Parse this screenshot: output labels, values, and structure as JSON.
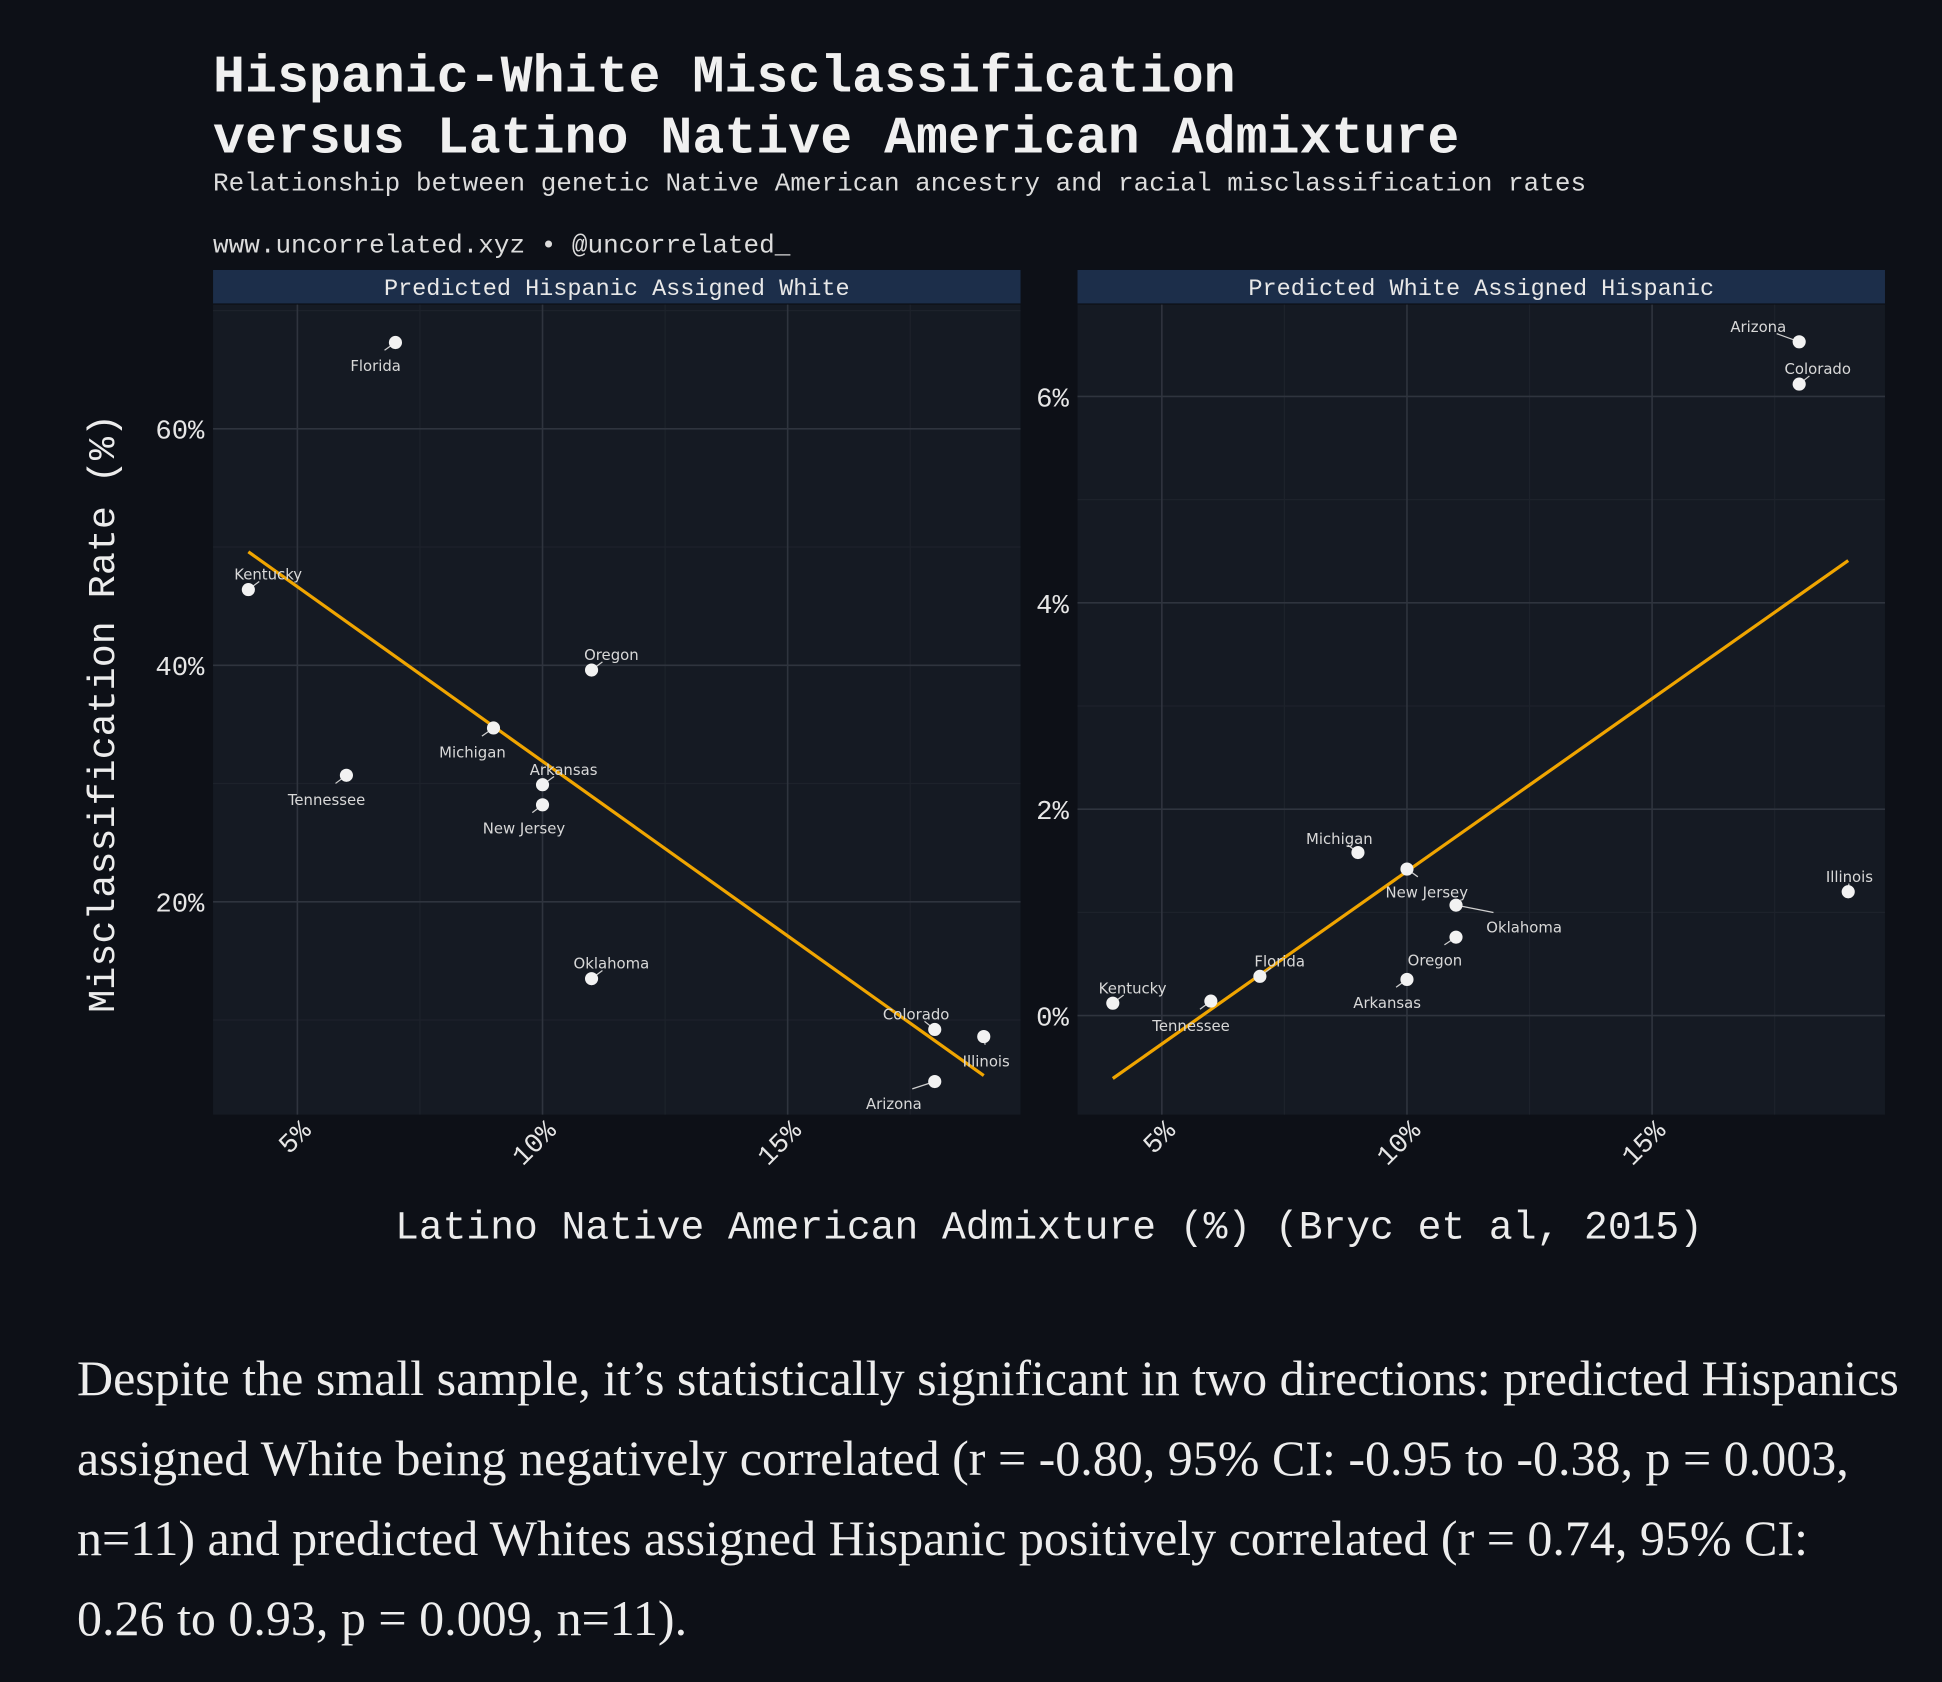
{
  "header": {
    "title_line1": "Hispanic-White Misclassification",
    "title_line2": "versus Latino Native American Admixture",
    "subtitle": "Relationship between genetic Native American ancestry and racial misclassification rates",
    "credit": "www.uncorrelated.xyz • @uncorrelated_"
  },
  "colors": {
    "background": "#0d1017",
    "panel": "#151a23",
    "strip": "#1c2e4a",
    "grid_major": "#2f343e",
    "grid_minor": "#1d222b",
    "trend_line": "#f0a500",
    "points": "#f2f2f2",
    "text": "#ececec"
  },
  "chart_data": [
    {
      "type": "scatter",
      "title": "Predicted Hispanic Assigned White",
      "xlabel": "Latino Native American Admixture (%) (Bryc et al, 2015)",
      "ylabel": "Misclassification Rate (%)",
      "xlim": [
        3.28,
        19.75
      ],
      "ylim": [
        2.0,
        70.5
      ],
      "x_ticks": [
        "5%",
        "10%",
        "15%"
      ],
      "x_tick_values": [
        5,
        10,
        15
      ],
      "y_ticks": [
        "20%",
        "40%",
        "60%"
      ],
      "y_tick_values": [
        20,
        40,
        60
      ],
      "grid": true,
      "points": [
        {
          "label": "Florida",
          "x": 7,
          "y": 67.3
        },
        {
          "label": "Kentucky",
          "x": 4,
          "y": 46.4
        },
        {
          "label": "Oregon",
          "x": 11,
          "y": 39.6
        },
        {
          "label": "Michigan",
          "x": 9,
          "y": 34.7
        },
        {
          "label": "Tennessee",
          "x": 6,
          "y": 30.7
        },
        {
          "label": "Arkansas",
          "x": 10,
          "y": 29.9
        },
        {
          "label": "New Jersey",
          "x": 10,
          "y": 28.2
        },
        {
          "label": "Oklahoma",
          "x": 11,
          "y": 13.5
        },
        {
          "label": "Colorado",
          "x": 18,
          "y": 9.2
        },
        {
          "label": "Illinois",
          "x": 19,
          "y": 8.6
        },
        {
          "label": "Arizona",
          "x": 18,
          "y": 4.8
        }
      ],
      "trend_line": {
        "x": [
          4,
          19
        ],
        "y": [
          49.6,
          5.3
        ]
      }
    },
    {
      "type": "scatter",
      "title": "Predicted White Assigned Hispanic",
      "xlim": [
        3.28,
        19.75
      ],
      "ylim": [
        -0.96,
        6.89
      ],
      "x_ticks": [
        "5%",
        "10%",
        "15%"
      ],
      "x_tick_values": [
        5,
        10,
        15
      ],
      "y_ticks": [
        "0%",
        "2%",
        "4%",
        "6%"
      ],
      "y_tick_values": [
        0,
        2,
        4,
        6
      ],
      "grid": true,
      "points": [
        {
          "label": "Arizona",
          "x": 18,
          "y": 6.53
        },
        {
          "label": "Colorado",
          "x": 18,
          "y": 6.12
        },
        {
          "label": "Michigan",
          "x": 9,
          "y": 1.58
        },
        {
          "label": "New Jersey",
          "x": 10,
          "y": 1.42
        },
        {
          "label": "Illinois",
          "x": 19,
          "y": 1.2
        },
        {
          "label": "Oklahoma",
          "x": 11,
          "y": 1.07
        },
        {
          "label": "Oregon",
          "x": 11,
          "y": 0.76
        },
        {
          "label": "Florida",
          "x": 7,
          "y": 0.38
        },
        {
          "label": "Arkansas",
          "x": 10,
          "y": 0.35
        },
        {
          "label": "Tennessee",
          "x": 6,
          "y": 0.14
        },
        {
          "label": "Kentucky",
          "x": 4,
          "y": 0.12
        }
      ],
      "trend_line": {
        "x": [
          4,
          19
        ],
        "y": [
          -0.61,
          4.41
        ]
      }
    }
  ],
  "caption": "Despite the small sample, it’s statistically significant in two directions: predicted Hispanics assigned White being negatively correlated (r = -0.80, 95% CI: -0.95 to -0.38, p = 0.003, n=11) and predicted Whites assigned Hispanic positively correlated (r = 0.74, 95% CI: 0.26 to 0.93, p = 0.009, n=11)."
}
